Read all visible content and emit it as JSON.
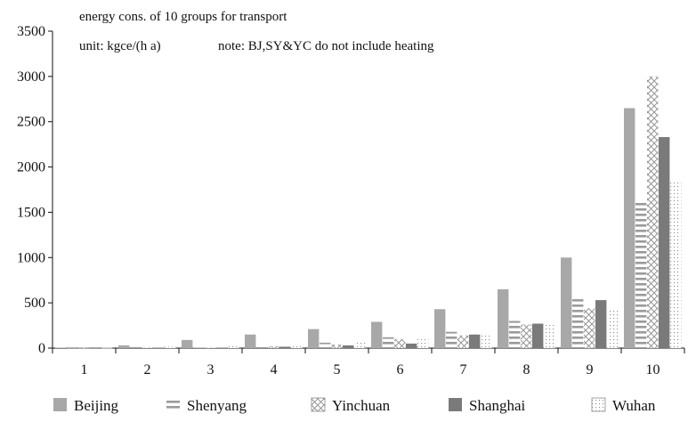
{
  "chart_data": {
    "type": "bar",
    "annotations": {
      "line1": "energy cons. of 10 groups for transport",
      "unit": "unit: kgce/(h a)",
      "note": "note:   BJ,SY&YC do not include heating"
    },
    "xlabel": "",
    "ylabel": "",
    "ylim": [
      0,
      3500
    ],
    "yticks": [
      "0",
      "500",
      "1000",
      "1500",
      "2000",
      "2500",
      "3000",
      "3500"
    ],
    "categories": [
      "1",
      "2",
      "3",
      "4",
      "5",
      "6",
      "7",
      "8",
      "9",
      "10"
    ],
    "legend_position": "bottom",
    "grid": false,
    "series": [
      {
        "name": "Beijing",
        "pattern": "solid-light-gray",
        "color": "#a8a8a8",
        "values": [
          5,
          30,
          90,
          150,
          210,
          290,
          430,
          650,
          1000,
          2650
        ]
      },
      {
        "name": "Shenyang",
        "pattern": "horizontal-lines",
        "color": "#9a9a9a",
        "values": [
          3,
          10,
          5,
          40,
          60,
          120,
          180,
          300,
          540,
          1630
        ]
      },
      {
        "name": "Yinchuan",
        "pattern": "cross-hatch",
        "color": "#9a9a9a",
        "values": [
          3,
          5,
          5,
          20,
          40,
          100,
          140,
          260,
          440,
          3000
        ]
      },
      {
        "name": "Shanghai",
        "pattern": "solid-dark-gray",
        "color": "#7a7a7a",
        "values": [
          3,
          5,
          5,
          15,
          30,
          50,
          150,
          270,
          530,
          2330
        ]
      },
      {
        "name": "Wuhan",
        "pattern": "dots",
        "color": "#9a9a9a",
        "values": [
          3,
          15,
          20,
          40,
          80,
          120,
          160,
          260,
          440,
          1830
        ]
      }
    ]
  }
}
